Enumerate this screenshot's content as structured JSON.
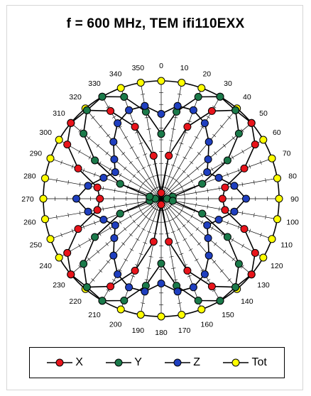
{
  "title": "f = 600 MHz, TEM  ifi110EXX",
  "chart_data": {
    "type": "polar",
    "title": "f = 600 MHz, TEM  ifi110EXX",
    "angle_labels": [
      "0",
      "10",
      "20",
      "30",
      "40",
      "50",
      "60",
      "70",
      "80",
      "90",
      "100",
      "110",
      "120",
      "130",
      "140",
      "150",
      "160",
      "170",
      "180",
      "190",
      "200",
      "210",
      "220",
      "230",
      "240",
      "250",
      "260",
      "270",
      "280",
      "290",
      "300",
      "310",
      "320",
      "330",
      "340",
      "350"
    ],
    "angle_direction": "clockwise",
    "zero_location": "top",
    "grid": true,
    "legend_position": "bottom",
    "series": [
      {
        "name": "X",
        "color": "#e8141b",
        "angles_deg": [
          0,
          10,
          20,
          30,
          40,
          50,
          60,
          70,
          80,
          90,
          100,
          110,
          120,
          130,
          140,
          150,
          160,
          170,
          180,
          190,
          200,
          210,
          220,
          230,
          240,
          250,
          260,
          270,
          280,
          290,
          300,
          310,
          320,
          330,
          340,
          350
        ],
        "values": [
          0.05,
          0.37,
          0.65,
          0.86,
          0.98,
          1.0,
          0.92,
          0.75,
          0.55,
          0.52,
          0.55,
          0.75,
          0.92,
          1.0,
          0.98,
          0.86,
          0.65,
          0.37,
          0.05,
          0.37,
          0.65,
          0.86,
          0.98,
          1.0,
          0.92,
          0.75,
          0.55,
          0.52,
          0.55,
          0.75,
          0.92,
          1.0,
          0.98,
          0.86,
          0.65,
          0.37
        ]
      },
      {
        "name": "Y",
        "color": "#1b7a4a",
        "angles_deg": [
          0,
          10,
          20,
          30,
          40,
          50,
          60,
          70,
          80,
          90,
          100,
          110,
          120,
          130,
          140,
          150,
          160,
          170,
          180,
          190,
          200,
          210,
          220,
          230,
          240,
          250,
          260,
          270,
          280,
          290,
          300,
          310,
          320,
          330,
          340,
          350
        ],
        "values": [
          0.55,
          0.75,
          0.92,
          1.0,
          0.98,
          0.86,
          0.65,
          0.37,
          0.1,
          0.05,
          0.1,
          0.37,
          0.65,
          0.86,
          0.98,
          1.0,
          0.92,
          0.75,
          0.55,
          0.75,
          0.92,
          1.0,
          0.98,
          0.86,
          0.65,
          0.37,
          0.1,
          0.05,
          0.1,
          0.37,
          0.65,
          0.86,
          0.98,
          1.0,
          0.92,
          0.75
        ]
      },
      {
        "name": "Z",
        "color": "#1f3fbf",
        "angles_deg": [
          0,
          10,
          20,
          30,
          40,
          50,
          60,
          70,
          80,
          90,
          100,
          110,
          120,
          130,
          140,
          150,
          160,
          170,
          180,
          190,
          200,
          210,
          220,
          230,
          240,
          250,
          260,
          270,
          280,
          290,
          300,
          310,
          320,
          330,
          340,
          350
        ],
        "values": [
          0.72,
          0.8,
          0.8,
          0.74,
          0.63,
          0.52,
          0.45,
          0.52,
          0.63,
          0.72,
          0.63,
          0.52,
          0.45,
          0.52,
          0.63,
          0.74,
          0.8,
          0.8,
          0.72,
          0.8,
          0.8,
          0.74,
          0.63,
          0.52,
          0.45,
          0.52,
          0.63,
          0.72,
          0.63,
          0.52,
          0.45,
          0.52,
          0.63,
          0.74,
          0.8,
          0.8
        ]
      },
      {
        "name": "Tot",
        "color": "#ffff00",
        "angles_deg": [
          0,
          10,
          20,
          30,
          40,
          50,
          60,
          70,
          80,
          90,
          100,
          110,
          120,
          130,
          140,
          150,
          160,
          170,
          180,
          190,
          200,
          210,
          220,
          230,
          240,
          250,
          260,
          270,
          280,
          290,
          300,
          310,
          320,
          330,
          340,
          350
        ],
        "values": [
          1,
          1,
          1,
          1,
          1,
          1,
          1,
          1,
          1,
          1,
          1,
          1,
          1,
          1,
          1,
          1,
          1,
          1,
          1,
          1,
          1,
          1,
          1,
          1,
          1,
          1,
          1,
          1,
          1,
          1,
          1,
          1,
          1,
          1,
          1,
          1
        ]
      }
    ]
  },
  "legend": {
    "items": [
      {
        "label": "X",
        "color": "#e8141b"
      },
      {
        "label": "Y",
        "color": "#1b7a4a"
      },
      {
        "label": "Z",
        "color": "#1f3fbf"
      },
      {
        "label": "Tot",
        "color": "#ffff00"
      }
    ]
  }
}
